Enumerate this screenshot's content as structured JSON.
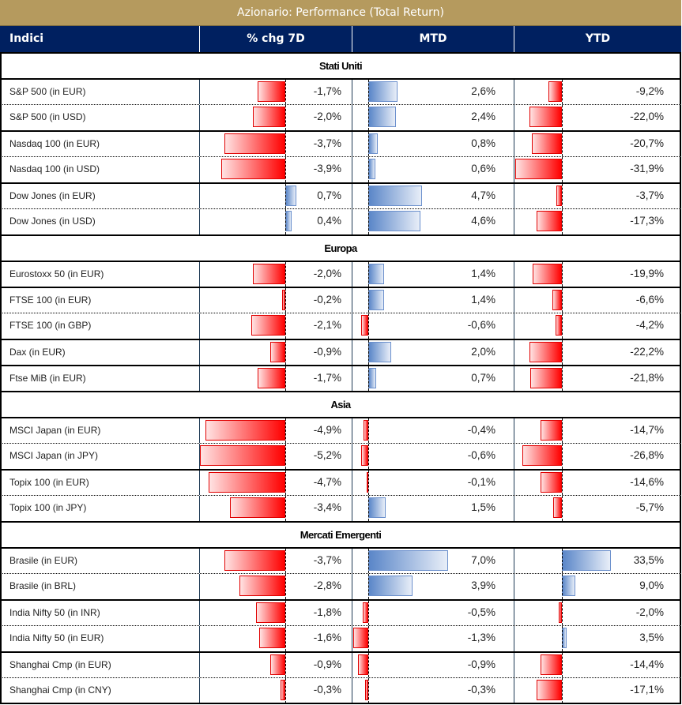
{
  "title": "Azionario: Performance (Total Return)",
  "header": {
    "col_name": "Indici",
    "col_7d": "% chg 7D",
    "col_mtd": "MTD",
    "col_ytd": "YTD"
  },
  "colors": {
    "title_bg": "#b59a5e",
    "header_bg": "#002060",
    "negative_bar": "#ff0000",
    "positive_bar": "#5a86c8"
  },
  "sections": [
    {
      "name": "Stati Uniti",
      "rows": [
        {
          "name": "S&P 500 (in EUR)",
          "chg7d": -1.7,
          "chg7d_label": "-1,7%",
          "mtd": 2.6,
          "mtd_label": "2,6%",
          "ytd": -9.2,
          "ytd_label": "-9,2%"
        },
        {
          "name": "S&P 500 (in USD)",
          "chg7d": -2.0,
          "chg7d_label": "-2,0%",
          "mtd": 2.4,
          "mtd_label": "2,4%",
          "ytd": -22.0,
          "ytd_label": "-22,0%"
        },
        {
          "name": "Nasdaq 100 (in EUR)",
          "chg7d": -3.7,
          "chg7d_label": "-3,7%",
          "mtd": 0.8,
          "mtd_label": "0,8%",
          "ytd": -20.7,
          "ytd_label": "-20,7%"
        },
        {
          "name": "Nasdaq 100 (in USD)",
          "chg7d": -3.9,
          "chg7d_label": "-3,9%",
          "mtd": 0.6,
          "mtd_label": "0,6%",
          "ytd": -31.9,
          "ytd_label": "-31,9%"
        },
        {
          "name": "Dow Jones (in EUR)",
          "chg7d": 0.7,
          "chg7d_label": "0,7%",
          "mtd": 4.7,
          "mtd_label": "4,7%",
          "ytd": -3.7,
          "ytd_label": "-3,7%"
        },
        {
          "name": "Dow Jones (in USD)",
          "chg7d": 0.4,
          "chg7d_label": "0,4%",
          "mtd": 4.6,
          "mtd_label": "4,6%",
          "ytd": -17.3,
          "ytd_label": "-17,3%"
        }
      ]
    },
    {
      "name": "Europa",
      "rows": [
        {
          "name": "Eurostoxx 50 (in EUR)",
          "chg7d": -2.0,
          "chg7d_label": "-2,0%",
          "mtd": 1.4,
          "mtd_label": "1,4%",
          "ytd": -19.9,
          "ytd_label": "-19,9%"
        },
        {
          "name": "FTSE 100 (in EUR)",
          "chg7d": -0.2,
          "chg7d_label": "-0,2%",
          "mtd": 1.4,
          "mtd_label": "1,4%",
          "ytd": -6.6,
          "ytd_label": "-6,6%"
        },
        {
          "name": "FTSE 100 (in GBP)",
          "chg7d": -2.1,
          "chg7d_label": "-2,1%",
          "mtd": -0.6,
          "mtd_label": "-0,6%",
          "ytd": -4.2,
          "ytd_label": "-4,2%"
        },
        {
          "name": "Dax (in EUR)",
          "chg7d": -0.9,
          "chg7d_label": "-0,9%",
          "mtd": 2.0,
          "mtd_label": "2,0%",
          "ytd": -22.2,
          "ytd_label": "-22,2%"
        },
        {
          "name": "Ftse MiB (in EUR)",
          "chg7d": -1.7,
          "chg7d_label": "-1,7%",
          "mtd": 0.7,
          "mtd_label": "0,7%",
          "ytd": -21.8,
          "ytd_label": "-21,8%"
        }
      ]
    },
    {
      "name": "Asia",
      "rows": [
        {
          "name": "MSCI Japan (in EUR)",
          "chg7d": -4.9,
          "chg7d_label": "-4,9%",
          "mtd": -0.4,
          "mtd_label": "-0,4%",
          "ytd": -14.7,
          "ytd_label": "-14,7%"
        },
        {
          "name": "MSCI Japan (in JPY)",
          "chg7d": -5.2,
          "chg7d_label": "-5,2%",
          "mtd": -0.6,
          "mtd_label": "-0,6%",
          "ytd": -26.8,
          "ytd_label": "-26,8%"
        },
        {
          "name": "Topix 100 (in EUR)",
          "chg7d": -4.7,
          "chg7d_label": "-4,7%",
          "mtd": -0.1,
          "mtd_label": "-0,1%",
          "ytd": -14.6,
          "ytd_label": "-14,6%"
        },
        {
          "name": "Topix 100 (in JPY)",
          "chg7d": -3.4,
          "chg7d_label": "-3,4%",
          "mtd": 1.5,
          "mtd_label": "1,5%",
          "ytd": -5.7,
          "ytd_label": "-5,7%"
        }
      ]
    },
    {
      "name": "Mercati Emergenti",
      "rows": [
        {
          "name": "Brasile (in EUR)",
          "chg7d": -3.7,
          "chg7d_label": "-3,7%",
          "mtd": 7.0,
          "mtd_label": "7,0%",
          "ytd": 33.5,
          "ytd_label": "33,5%"
        },
        {
          "name": "Brasile (in BRL)",
          "chg7d": -2.8,
          "chg7d_label": "-2,8%",
          "mtd": 3.9,
          "mtd_label": "3,9%",
          "ytd": 9.0,
          "ytd_label": "9,0%"
        },
        {
          "name": "India Nifty 50 (in INR)",
          "chg7d": -1.8,
          "chg7d_label": "-1,8%",
          "mtd": -0.5,
          "mtd_label": "-0,5%",
          "ytd": -2.0,
          "ytd_label": "-2,0%"
        },
        {
          "name": "India Nifty 50 (in EUR)",
          "chg7d": -1.6,
          "chg7d_label": "-1,6%",
          "mtd": -1.3,
          "mtd_label": "-1,3%",
          "ytd": 3.5,
          "ytd_label": "3,5%"
        },
        {
          "name": "Shanghai Cmp (in EUR)",
          "chg7d": -0.9,
          "chg7d_label": "-0,9%",
          "mtd": -0.9,
          "mtd_label": "-0,9%",
          "ytd": -14.4,
          "ytd_label": "-14,4%"
        },
        {
          "name": "Shanghai Cmp (in CNY)",
          "chg7d": -0.3,
          "chg7d_label": "-0,3%",
          "mtd": -0.3,
          "mtd_label": "-0,3%",
          "ytd": -17.1,
          "ytd_label": "-17,1%"
        }
      ]
    }
  ]
}
